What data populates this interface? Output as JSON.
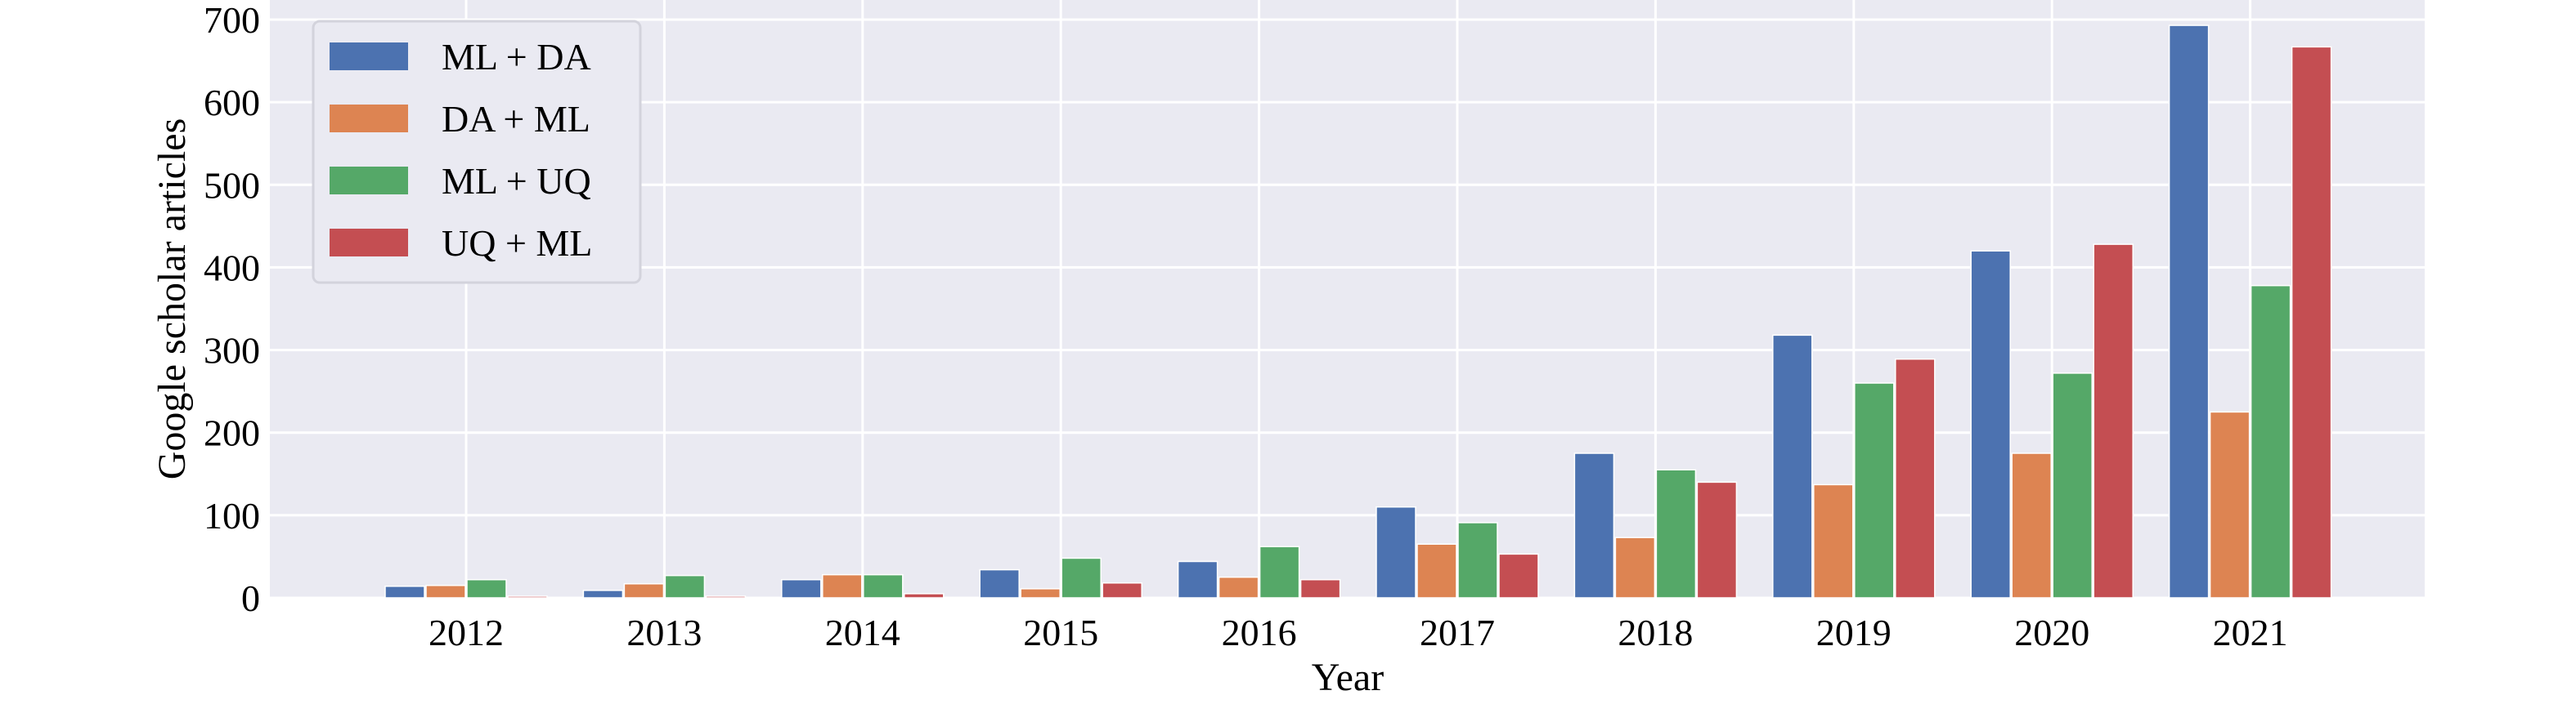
{
  "chart_data": {
    "type": "bar",
    "title": "",
    "xlabel": "Year",
    "ylabel": "Google scholar articles",
    "categories": [
      "2012",
      "2013",
      "2014",
      "2015",
      "2016",
      "2017",
      "2018",
      "2019",
      "2020",
      "2021"
    ],
    "ylim": [
      0,
      700
    ],
    "yticks": [
      "0",
      "100",
      "200",
      "300",
      "400",
      "500",
      "600",
      "700"
    ],
    "grid": true,
    "legend_position": "top-left",
    "series": [
      {
        "name": "ML + DA",
        "color": "#4C72B0",
        "values": [
          14,
          9,
          22,
          34,
          44,
          110,
          175,
          318,
          420,
          693
        ]
      },
      {
        "name": "DA + ML",
        "color": "#DD8452",
        "values": [
          15,
          17,
          28,
          11,
          25,
          65,
          73,
          137,
          175,
          225
        ]
      },
      {
        "name": "ML + UQ",
        "color": "#55A868",
        "values": [
          22,
          27,
          28,
          48,
          62,
          91,
          155,
          260,
          272,
          378
        ]
      },
      {
        "name": "UQ + ML",
        "color": "#C44E52",
        "values": [
          2,
          2,
          5,
          18,
          22,
          53,
          140,
          289,
          428,
          667
        ]
      }
    ]
  }
}
